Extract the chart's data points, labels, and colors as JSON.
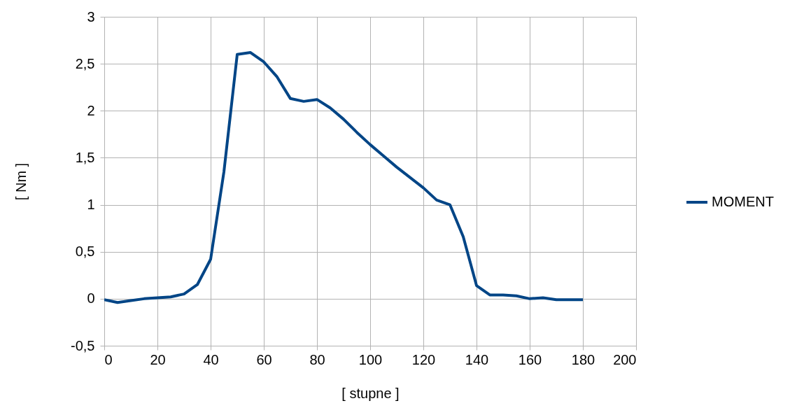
{
  "chart_data": {
    "type": "line",
    "xlabel": "[ stupne ]",
    "ylabel": "[ Nm ]",
    "x": [
      0,
      5,
      10,
      15,
      20,
      25,
      30,
      35,
      40,
      45,
      50,
      55,
      60,
      65,
      70,
      75,
      80,
      85,
      90,
      95,
      100,
      105,
      110,
      115,
      120,
      125,
      130,
      135,
      140,
      145,
      150,
      155,
      160,
      165,
      170,
      175,
      180
    ],
    "series": [
      {
        "name": "MOMENT",
        "color": "#004586",
        "values": [
          -0.01,
          -0.04,
          -0.02,
          0.0,
          0.01,
          0.02,
          0.05,
          0.15,
          0.42,
          1.35,
          2.6,
          2.62,
          2.52,
          2.36,
          2.13,
          2.1,
          2.12,
          2.03,
          1.91,
          1.77,
          1.64,
          1.52,
          1.4,
          1.29,
          1.18,
          1.05,
          1.0,
          0.66,
          0.14,
          0.04,
          0.04,
          0.03,
          0.0,
          0.01,
          -0.01,
          -0.01,
          -0.01
        ]
      }
    ],
    "xlim": [
      0,
      200
    ],
    "xticks": [
      0,
      20,
      40,
      60,
      80,
      100,
      120,
      140,
      160,
      180,
      200
    ],
    "ylim": [
      -0.5,
      3
    ],
    "yticks": [
      {
        "value": -0.5,
        "label": "-0,5"
      },
      0,
      {
        "value": 0.5,
        "label": "0,5"
      },
      1,
      {
        "value": 1.5,
        "label": "1,5"
      },
      2,
      {
        "value": 2.5,
        "label": "2,5"
      },
      3
    ],
    "grid": true,
    "legend": "right",
    "marker": "none",
    "line_style": "solid"
  }
}
